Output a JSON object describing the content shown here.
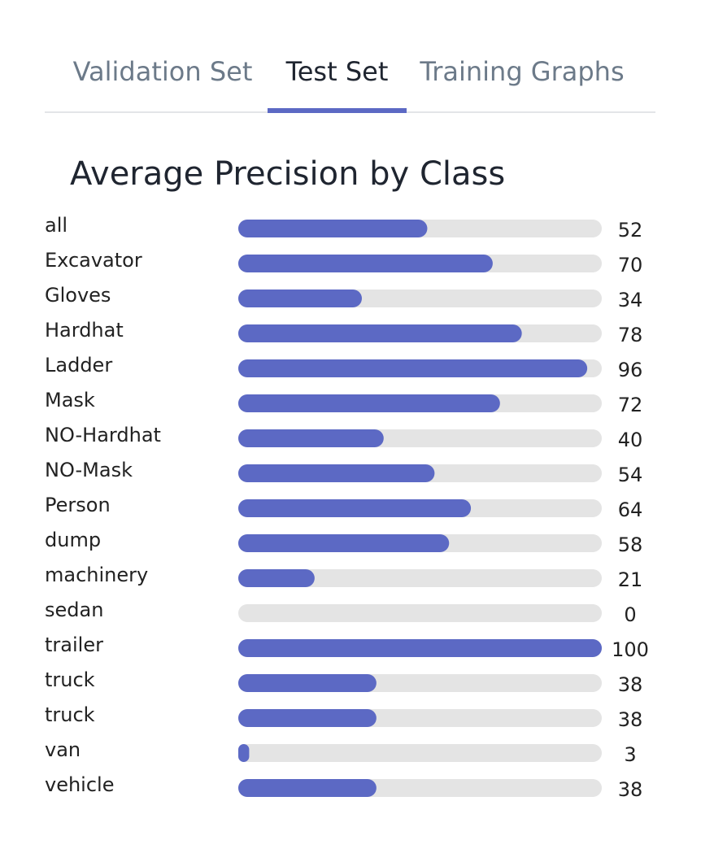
{
  "tabs": [
    {
      "label": "Validation Set",
      "active": false
    },
    {
      "label": "Test Set",
      "active": true
    },
    {
      "label": "Training Graphs",
      "active": false
    }
  ],
  "colors": {
    "bar_fill": "#5c69c4",
    "bar_track": "#e4e4e4",
    "tab_active_underline": "#5c69c4"
  },
  "chart_data": {
    "type": "bar",
    "orientation": "horizontal",
    "title": "Average Precision by Class",
    "xlim": [
      0,
      100
    ],
    "grid": false,
    "categories": [
      "all",
      "Excavator",
      "Gloves",
      "Hardhat",
      "Ladder",
      "Mask",
      "NO-Hardhat",
      "NO-Mask",
      "Person",
      "dump",
      "machinery",
      "sedan",
      "trailer",
      "truck",
      "truck",
      "van",
      "vehicle"
    ],
    "values": [
      52,
      70,
      34,
      78,
      96,
      72,
      40,
      54,
      64,
      58,
      21,
      0,
      100,
      38,
      38,
      3,
      38
    ]
  }
}
